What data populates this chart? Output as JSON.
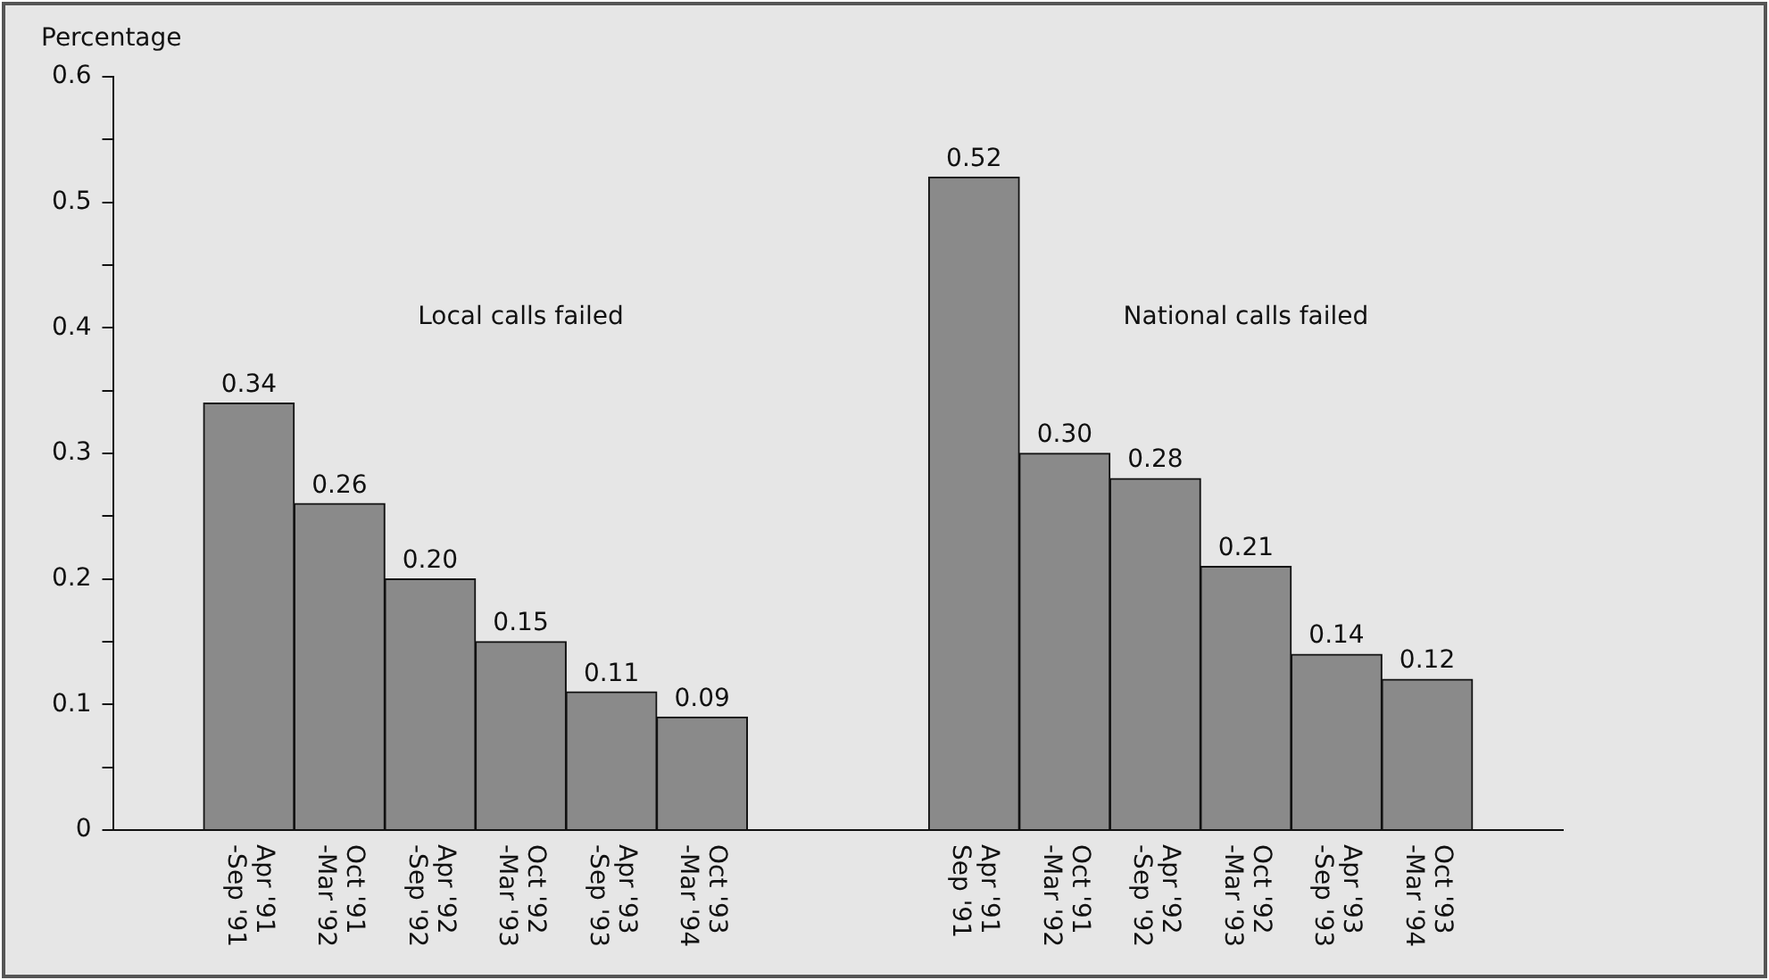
{
  "chart_data": {
    "type": "bar",
    "ylabel": "Percentage",
    "categories": [
      null,
      "Apr '91\n-Sep '91",
      "Oct '91\n-Mar '92",
      "Apr '92\n-Sep '92",
      "Oct '92\n-Mar '93",
      "Apr '93\n-Sep '93",
      "Oct '93\n-Mar '94",
      null,
      null,
      "Apr '91\nSep '91",
      "Oct '91\n-Mar '92",
      "Apr '92\n-Sep '92",
      "Oct '92\n-Mar '93",
      "Apr '93\n-Sep '93",
      "Oct '93\n-Mar '94",
      null
    ],
    "values": [
      null,
      0.34,
      0.26,
      0.2,
      0.15,
      0.11,
      0.09,
      null,
      null,
      0.52,
      0.3,
      0.28,
      0.21,
      0.14,
      0.12,
      null
    ],
    "value_labels": [
      null,
      "0.34",
      "0.26",
      "0.20",
      "0.15",
      "0.11",
      "0.09",
      null,
      null,
      "0.52",
      "0.30",
      "0.28",
      "0.21",
      "0.14",
      "0.12",
      null
    ],
    "color": "#8a8a8a",
    "ylim": [
      0,
      0.6
    ],
    "yticks": [
      0,
      {
        "value": 0.05,
        "label": null
      },
      0.1,
      {
        "value": 0.15,
        "label": null
      },
      0.2,
      {
        "value": 0.25,
        "label": null
      },
      0.3,
      {
        "value": 0.35,
        "label": null
      },
      0.4,
      {
        "value": 0.45,
        "label": null
      },
      0.5,
      {
        "value": 0.55,
        "label": null
      },
      0.6
    ],
    "annotations": [
      "Local calls failed",
      "National calls failed"
    ],
    "grid": false,
    "legend": false
  }
}
